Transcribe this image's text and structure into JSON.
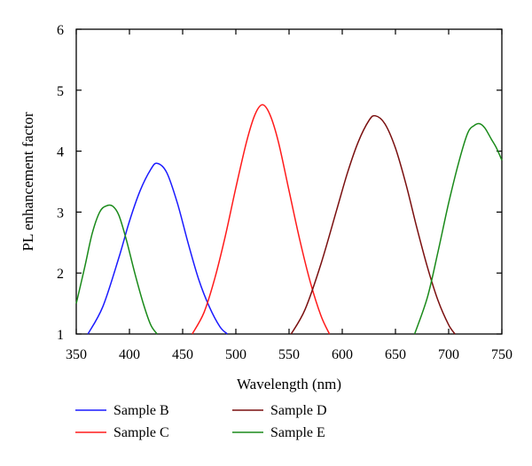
{
  "chart_data": {
    "type": "line",
    "title": "",
    "xlabel": "Wavelength (nm)",
    "ylabel": "PL enhancement factor",
    "xlim": [
      350,
      750
    ],
    "ylim": [
      1,
      6
    ],
    "xticks": [
      350,
      400,
      450,
      500,
      550,
      600,
      650,
      700,
      750
    ],
    "yticks": [
      1,
      2,
      3,
      4,
      5,
      6
    ],
    "grid": false,
    "legend_position": "below",
    "series": [
      {
        "name": "Sample B",
        "color": "#1a1aff",
        "x": [
          361,
          375,
          390,
          400,
          410,
          420,
          426,
          435,
          445,
          455,
          465,
          475,
          485,
          492
        ],
        "y": [
          1.0,
          1.45,
          2.25,
          2.85,
          3.35,
          3.7,
          3.8,
          3.65,
          3.15,
          2.5,
          1.9,
          1.45,
          1.12,
          1.0
        ]
      },
      {
        "name": "Sample C",
        "color": "#ff1a1a",
        "x": [
          459,
          470,
          480,
          490,
          500,
          510,
          518,
          525,
          532,
          540,
          550,
          560,
          570,
          580,
          588
        ],
        "y": [
          1.0,
          1.35,
          1.9,
          2.6,
          3.4,
          4.15,
          4.6,
          4.76,
          4.6,
          4.15,
          3.35,
          2.55,
          1.85,
          1.3,
          1.0
        ]
      },
      {
        "name": "Sample D",
        "color": "#7a0f0f",
        "x": [
          552,
          565,
          580,
          595,
          605,
          615,
          625,
          631,
          640,
          650,
          660,
          670,
          680,
          690,
          700,
          706
        ],
        "y": [
          1.0,
          1.4,
          2.15,
          3.05,
          3.65,
          4.15,
          4.5,
          4.58,
          4.45,
          4.05,
          3.45,
          2.75,
          2.1,
          1.55,
          1.15,
          1.0
        ]
      },
      {
        "name": "Sample E",
        "color": "#1a8a1a",
        "x": [
          350,
          358,
          365,
          372,
          378,
          384,
          390,
          397,
          405,
          413,
          420,
          426
        ],
        "y": [
          1.5,
          2.1,
          2.65,
          3.0,
          3.1,
          3.1,
          2.95,
          2.55,
          2.0,
          1.5,
          1.15,
          1.0
        ]
      },
      {
        "name": "Sample E",
        "color": "#1a8a1a",
        "x": [
          668,
          680,
          690,
          700,
          710,
          718,
          724,
          729,
          734,
          740,
          745,
          750
        ],
        "y": [
          1.0,
          1.6,
          2.35,
          3.15,
          3.85,
          4.3,
          4.42,
          4.45,
          4.38,
          4.2,
          4.05,
          3.85
        ]
      }
    ],
    "legend": [
      {
        "label": "Sample B",
        "color": "#1a1aff"
      },
      {
        "label": "Sample C",
        "color": "#ff1a1a"
      },
      {
        "label": "Sample D",
        "color": "#7a0f0f"
      },
      {
        "label": "Sample E",
        "color": "#1a8a1a"
      }
    ]
  }
}
